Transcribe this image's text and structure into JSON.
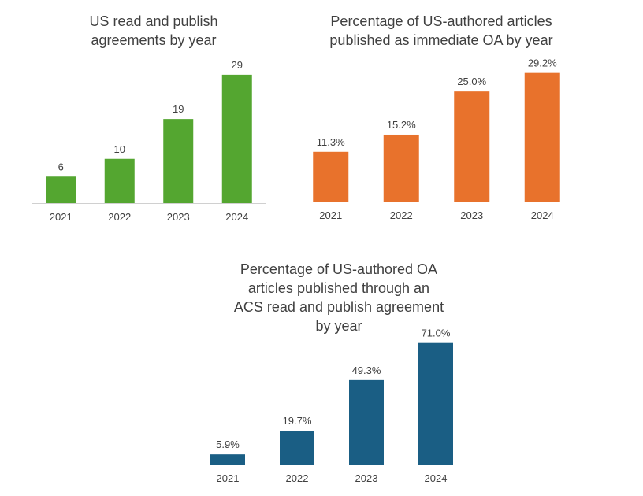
{
  "chart_data": [
    {
      "type": "bar",
      "title_lines": [
        "US read and publish",
        "agreements by year"
      ],
      "categories": [
        "2021",
        "2022",
        "2023",
        "2024"
      ],
      "values": [
        6,
        10,
        19,
        29
      ],
      "labels": [
        "6",
        "10",
        "19",
        "29"
      ],
      "ylim": [
        0,
        32
      ],
      "color": "#54a630"
    },
    {
      "type": "bar",
      "title_lines": [
        "Percentage of US-authored articles",
        "published as immediate OA by year"
      ],
      "categories": [
        "2021",
        "2022",
        "2023",
        "2024"
      ],
      "values": [
        11.3,
        15.2,
        25.0,
        29.2
      ],
      "labels": [
        "11.3%",
        "15.2%",
        "25.0%",
        "29.2%"
      ],
      "ylim": [
        0,
        32
      ],
      "color": "#e8722c"
    },
    {
      "type": "bar",
      "title_lines": [
        "Percentage of US-authored OA",
        "articles published through an",
        "ACS read and publish agreement",
        "by year"
      ],
      "categories": [
        "2021",
        "2022",
        "2023",
        "2024"
      ],
      "values": [
        5.9,
        19.7,
        49.3,
        71.0
      ],
      "labels": [
        "5.9%",
        "19.7%",
        "49.3%",
        "71.0%"
      ],
      "ylim": [
        0,
        75
      ],
      "color": "#1a5e84"
    }
  ]
}
